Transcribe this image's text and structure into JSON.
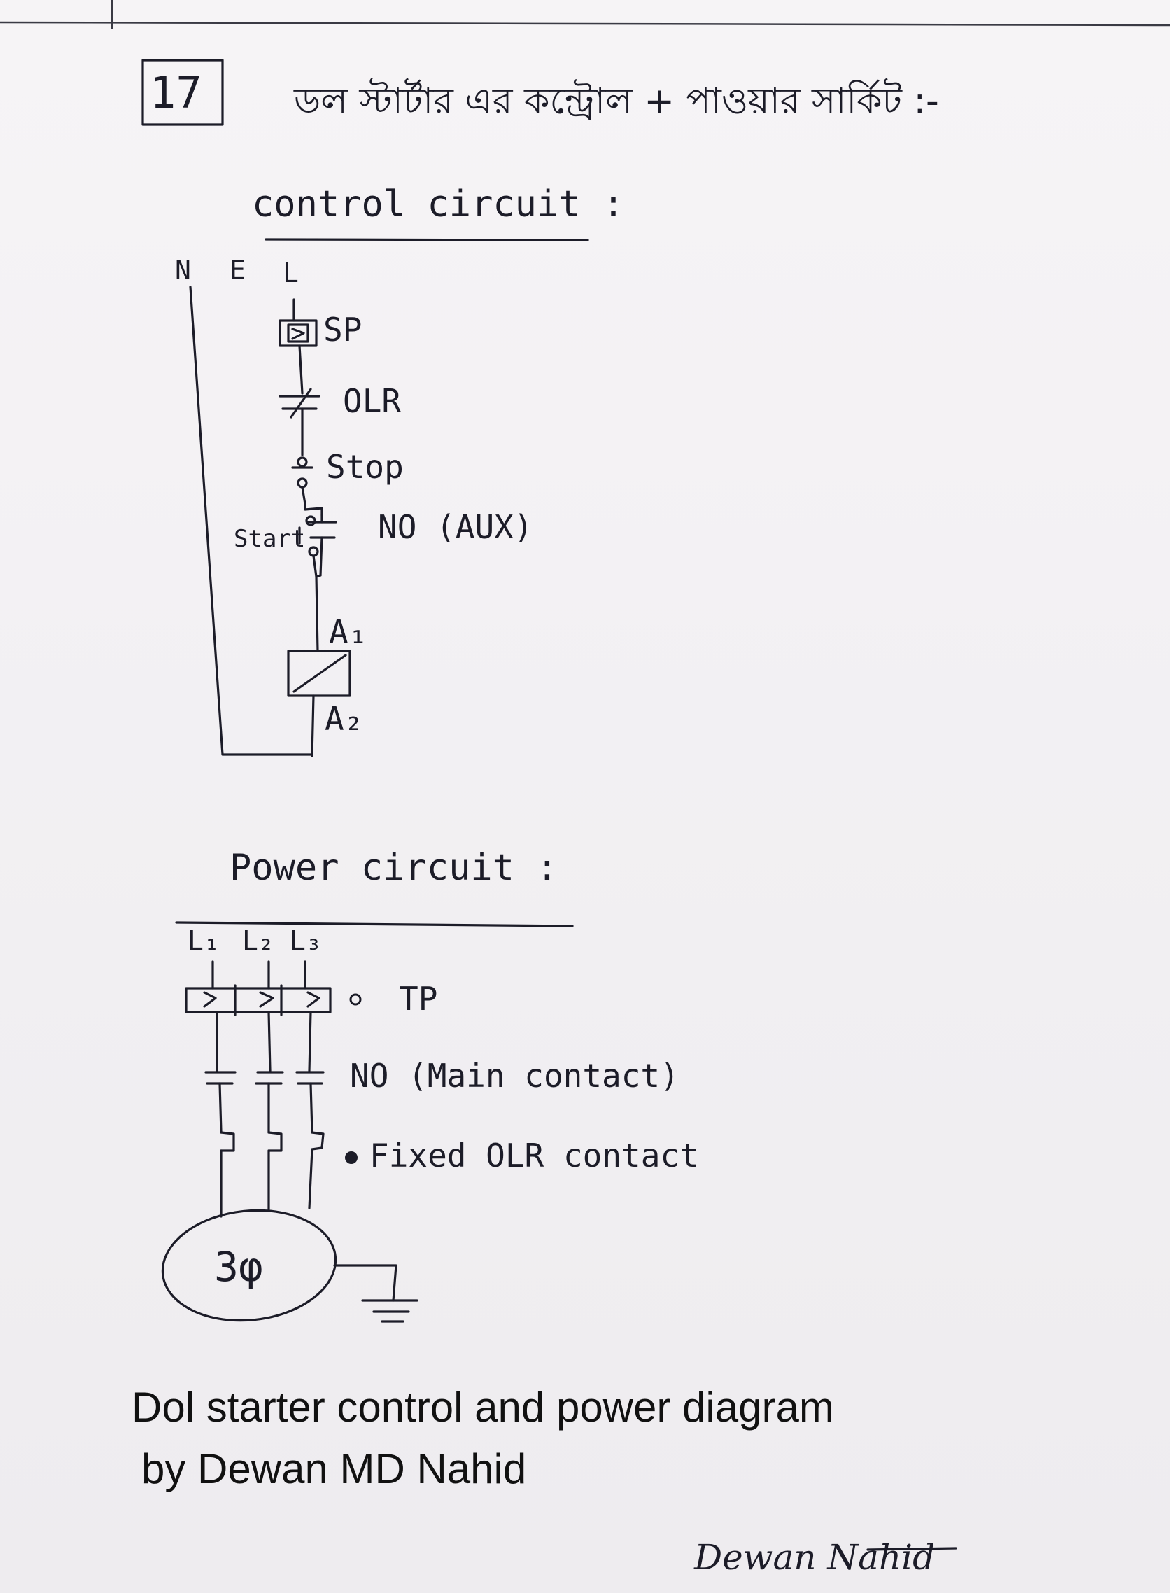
{
  "header": {
    "number": "17",
    "bangla_title": "ডল স্টার্টার এর কন্ট্রোল + পাওয়ার সার্কিট :-"
  },
  "control": {
    "title": "control circuit :",
    "labels": {
      "n": "N",
      "e": "E",
      "l": "L",
      "sp": "SP",
      "olr": "OLR",
      "stop": "Stop",
      "start": "Start",
      "no_aux": "NO (AUX)",
      "a1": "A₁",
      "a2": "A₂"
    }
  },
  "power": {
    "title": "Power circuit :",
    "labels": {
      "l1": "L₁",
      "l2": "L₂",
      "l3": "L₃",
      "tp": "TP",
      "no_main": "NO (Main contact)",
      "fixed_olr": "Fixed OLR contact",
      "motor": "3φ"
    }
  },
  "caption": {
    "line1": "Dol starter control and power diagram",
    "line2": "by Dewan MD Nahid"
  },
  "signature": "Dewan Nahid"
}
